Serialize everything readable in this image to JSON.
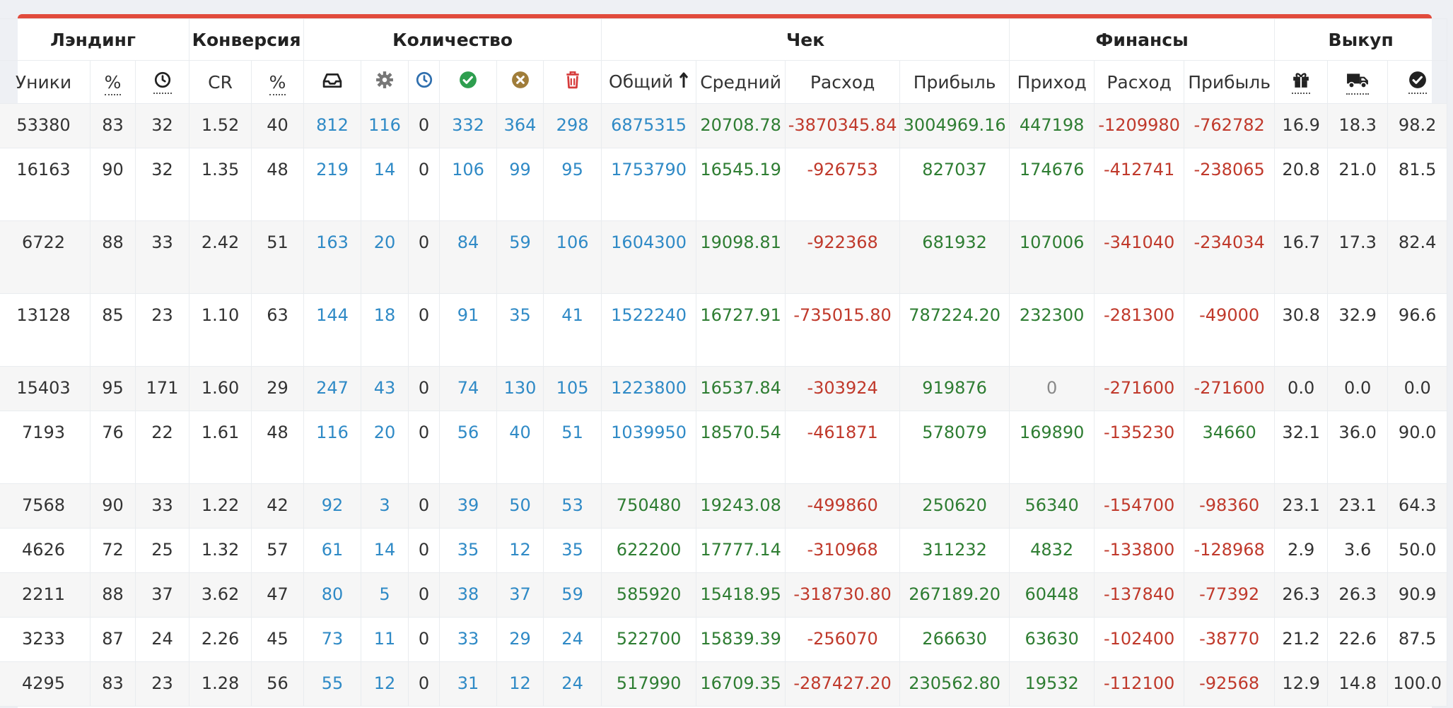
{
  "groups": [
    {
      "label": "Лэндинг",
      "span": 3
    },
    {
      "label": "Конверсия",
      "span": 2
    },
    {
      "label": "Количество",
      "span": 6
    },
    {
      "label": "Чек",
      "span": 4
    },
    {
      "label": "Финансы",
      "span": 3
    },
    {
      "label": "Выкуп",
      "span": 3
    }
  ],
  "columns": [
    {
      "key": "uniques",
      "label": "Уники",
      "w": 132
    },
    {
      "key": "pct",
      "label": "%",
      "w": 64,
      "dotted": true
    },
    {
      "key": "time",
      "icon": "clock-icon",
      "w": 76,
      "dotted": true
    },
    {
      "key": "cr",
      "label": "CR",
      "w": 88
    },
    {
      "key": "cpct",
      "label": "%",
      "w": 74,
      "dotted": true
    },
    {
      "key": "q_new",
      "icon": "inbox-icon",
      "w": 81
    },
    {
      "key": "q_proc",
      "icon": "gear-icon",
      "w": 67
    },
    {
      "key": "q_wait",
      "icon": "clock-blue-icon",
      "w": 44
    },
    {
      "key": "q_ok",
      "icon": "check-circle-icon",
      "w": 81
    },
    {
      "key": "q_cancel",
      "icon": "x-circle-icon",
      "w": 66
    },
    {
      "key": "q_trash",
      "icon": "trash-icon",
      "w": 82
    },
    {
      "key": "total",
      "label": "Общий",
      "sorted": true,
      "w": 134
    },
    {
      "key": "avg",
      "label": "Средний",
      "w": 126
    },
    {
      "key": "expense",
      "label": "Расход",
      "w": 162
    },
    {
      "key": "profit",
      "label": "Прибыль",
      "w": 155
    },
    {
      "key": "income",
      "label": "Приход",
      "w": 120
    },
    {
      "key": "fexpense",
      "label": "Расход",
      "w": 127
    },
    {
      "key": "fprofit",
      "label": "Прибыль",
      "w": 128
    },
    {
      "key": "b1",
      "icon": "gift-icon",
      "w": 75,
      "dotted": true
    },
    {
      "key": "b2",
      "icon": "truck-icon",
      "w": 85,
      "dotted": true
    },
    {
      "key": "b3",
      "icon": "check-circle-dark-icon",
      "w": 84,
      "dotted": true
    }
  ],
  "rows": [
    {
      "h": 62,
      "cells": [
        "53380",
        "83",
        "32",
        "1.52",
        "40",
        "812",
        "116",
        "0",
        "332",
        "364",
        "298",
        "6875315",
        "20708.78",
        "-3870345.84",
        "3004969.16",
        "447198",
        "-1209980",
        "-762782",
        "16.9",
        "18.3",
        "98.2"
      ]
    },
    {
      "h": 102,
      "cells": [
        "16163",
        "90",
        "32",
        "1.35",
        "48",
        "219",
        "14",
        "0",
        "106",
        "99",
        "95",
        "1753790",
        "16545.19",
        "-926753",
        "827037",
        "174676",
        "-412741",
        "-238065",
        "20.8",
        "21.0",
        "81.5"
      ]
    },
    {
      "h": 102,
      "cells": [
        "6722",
        "88",
        "33",
        "2.42",
        "51",
        "163",
        "20",
        "0",
        "84",
        "59",
        "106",
        "1604300",
        "19098.81",
        "-922368",
        "681932",
        "107006",
        "-341040",
        "-234034",
        "16.7",
        "17.3",
        "82.4"
      ]
    },
    {
      "h": 102,
      "cells": [
        "13128",
        "85",
        "23",
        "1.10",
        "63",
        "144",
        "18",
        "0",
        "91",
        "35",
        "41",
        "1522240",
        "16727.91",
        "-735015.80",
        "787224.20",
        "232300",
        "-281300",
        "-49000",
        "30.8",
        "32.9",
        "96.6"
      ]
    },
    {
      "h": 62,
      "cells": [
        "15403",
        "95",
        "171",
        "1.60",
        "29",
        "247",
        "43",
        "0",
        "74",
        "130",
        "105",
        "1223800",
        "16537.84",
        "-303924",
        "919876",
        "0",
        "-271600",
        "-271600",
        "0.0",
        "0.0",
        "0.0"
      ]
    },
    {
      "h": 102,
      "cells": [
        "7193",
        "76",
        "22",
        "1.61",
        "48",
        "116",
        "20",
        "0",
        "56",
        "40",
        "51",
        "1039950",
        "18570.54",
        "-461871",
        "578079",
        "169890",
        "-135230",
        "34660",
        "32.1",
        "36.0",
        "90.0"
      ]
    },
    {
      "h": 62,
      "cells": [
        "7568",
        "90",
        "33",
        "1.22",
        "42",
        "92",
        "3",
        "0",
        "39",
        "50",
        "53",
        "750480",
        "19243.08",
        "-499860",
        "250620",
        "56340",
        "-154700",
        "-98360",
        "23.1",
        "23.1",
        "64.3"
      ]
    },
    {
      "h": 62,
      "cells": [
        "4626",
        "72",
        "25",
        "1.32",
        "57",
        "61",
        "14",
        "0",
        "35",
        "12",
        "35",
        "622200",
        "17777.14",
        "-310968",
        "311232",
        "4832",
        "-133800",
        "-128968",
        "2.9",
        "3.6",
        "50.0"
      ]
    },
    {
      "h": 62,
      "cells": [
        "2211",
        "88",
        "37",
        "3.62",
        "47",
        "80",
        "5",
        "0",
        "38",
        "37",
        "59",
        "585920",
        "15418.95",
        "-318730.80",
        "267189.20",
        "60448",
        "-137840",
        "-77392",
        "26.3",
        "26.3",
        "90.9"
      ]
    },
    {
      "h": 62,
      "cells": [
        "3233",
        "87",
        "24",
        "2.26",
        "45",
        "73",
        "11",
        "0",
        "33",
        "29",
        "24",
        "522700",
        "15839.39",
        "-256070",
        "266630",
        "63630",
        "-102400",
        "-38770",
        "21.2",
        "22.6",
        "87.5"
      ]
    },
    {
      "h": 62,
      "cells": [
        "4295",
        "83",
        "23",
        "1.28",
        "56",
        "55",
        "12",
        "0",
        "31",
        "12",
        "24",
        "517990",
        "16709.35",
        "-287427.20",
        "230562.80",
        "19532",
        "-112100",
        "-92568",
        "12.9",
        "14.8",
        "100.0"
      ]
    }
  ],
  "colors": {
    "accent": "#e14b3c",
    "blue": "#2f8ac6",
    "green": "#2e7d32",
    "red": "#c0392b"
  }
}
